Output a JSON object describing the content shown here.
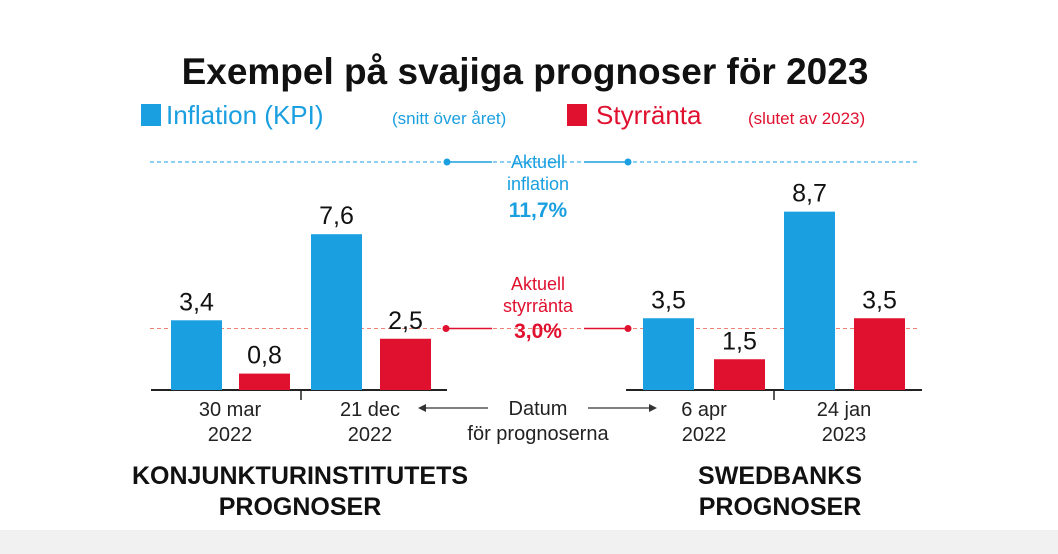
{
  "chart_data": {
    "type": "bar",
    "title": "Exempel på svajiga prognoser för 2023",
    "legend": [
      {
        "name": "Inflation (KPI)",
        "note": "(snitt över året)",
        "color": "#1a9fe0"
      },
      {
        "name": "Styrränta",
        "note": "(slutet av 2023)",
        "color": "#e0102f"
      }
    ],
    "groups": [
      {
        "name": "KONJUNKTURINSTITUTETS PROGNOSER",
        "name_lines": [
          "KONJUNKTURINSTITUTETS",
          "PROGNOSER"
        ],
        "dates": [
          {
            "line1": "30 mar",
            "line2": "2022",
            "inflation": 3.4,
            "inflation_label": "3,4",
            "rate": 0.8,
            "rate_label": "0,8"
          },
          {
            "line1": "21 dec",
            "line2": "2022",
            "inflation": 7.6,
            "inflation_label": "7,6",
            "rate": 2.5,
            "rate_label": "2,5"
          }
        ]
      },
      {
        "name": "SWEDBANKS PROGNOSER",
        "name_lines": [
          "SWEDBANKS",
          "PROGNOSER"
        ],
        "dates": [
          {
            "line1": "6 apr",
            "line2": "2022",
            "inflation": 3.5,
            "inflation_label": "3,5",
            "rate": 1.5,
            "rate_label": "1,5"
          },
          {
            "line1": "24 jan",
            "line2": "2023",
            "inflation": 8.7,
            "inflation_label": "8,7",
            "rate": 3.5,
            "rate_label": "3,5"
          }
        ]
      }
    ],
    "reference_lines": [
      {
        "value": 11.7,
        "label_lines": [
          "Aktuell",
          "inflation"
        ],
        "value_label": "11,7%",
        "color": "#1a9fe0"
      },
      {
        "value": 3.0,
        "label_lines": [
          "Aktuell",
          "styrränta"
        ],
        "value_label": "3,0%",
        "color": "#e0102f"
      }
    ],
    "date_caption_lines": [
      "Datum",
      "för prognoserna"
    ],
    "ylim": [
      0,
      11.7
    ],
    "grid": false
  }
}
